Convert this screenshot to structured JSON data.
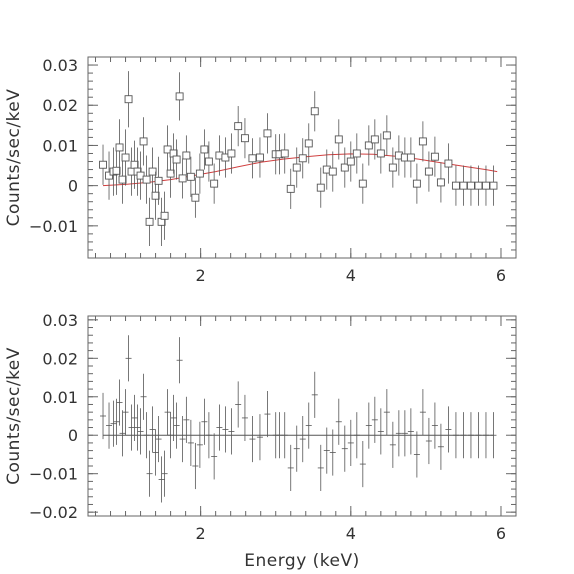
{
  "chart_data": [
    {
      "type": "scatter",
      "panel": "spectrum",
      "ylabel": "Counts/sec/keV",
      "xlabel": "",
      "xlim": [
        0.5,
        6.2
      ],
      "ylim": [
        -0.018,
        0.032
      ],
      "xticks": [
        2,
        4,
        6
      ],
      "xtick_labels": [
        "2",
        "4",
        "6"
      ],
      "yticks": [
        -0.01,
        0,
        0.01,
        0.02,
        0.03
      ],
      "ytick_labels": [
        "−0.01",
        "0",
        "0.01",
        "0.02",
        "0.03"
      ],
      "grid": false,
      "colors": {
        "data": "#555555",
        "model": "#d04040"
      },
      "series": [
        {
          "role": "data",
          "marker": "open-square",
          "x": [
            0.7,
            0.78,
            0.84,
            0.88,
            0.92,
            0.96,
            1.0,
            1.04,
            1.08,
            1.12,
            1.16,
            1.2,
            1.24,
            1.28,
            1.32,
            1.36,
            1.4,
            1.44,
            1.48,
            1.52,
            1.56,
            1.6,
            1.64,
            1.68,
            1.72,
            1.76,
            1.81,
            1.87,
            1.93,
            1.99,
            2.05,
            2.11,
            2.18,
            2.25,
            2.33,
            2.41,
            2.5,
            2.59,
            2.69,
            2.79,
            2.89,
            3.0,
            3.05,
            3.12,
            3.2,
            3.28,
            3.36,
            3.44,
            3.52,
            3.6,
            3.68,
            3.76,
            3.84,
            3.92,
            4.0,
            4.08,
            4.16,
            4.24,
            4.32,
            4.4,
            4.48,
            4.56,
            4.64,
            4.72,
            4.8,
            4.88,
            4.96,
            5.04,
            5.12,
            5.2,
            5.3,
            5.4,
            5.5,
            5.6,
            5.7,
            5.8,
            5.9
          ],
          "y": [
            0.0052,
            0.0025,
            0.0035,
            0.0037,
            0.0095,
            0.0015,
            0.007,
            0.0215,
            0.0035,
            0.0052,
            0.0035,
            0.0025,
            0.011,
            0.0015,
            -0.009,
            0.0035,
            -0.0025,
            0.0012,
            -0.009,
            -0.0075,
            0.009,
            0.003,
            0.008,
            0.0065,
            0.0222,
            0.0018,
            0.0075,
            0.0022,
            -0.003,
            0.003,
            0.009,
            0.006,
            0.0005,
            0.0075,
            0.007,
            0.008,
            0.0148,
            0.0118,
            0.0068,
            0.007,
            0.013,
            0.0078,
            0.0078,
            0.008,
            -0.0008,
            0.0045,
            0.0068,
            0.0105,
            0.0185,
            -0.0005,
            0.004,
            0.0035,
            0.0115,
            0.0045,
            0.006,
            0.008,
            0.0005,
            0.01,
            0.0115,
            0.008,
            0.0125,
            0.0045,
            0.0075,
            0.007,
            0.007,
            0.0005,
            0.011,
            0.0035,
            0.0072,
            0.0008,
            0.0055,
            0.0,
            0.0,
            0.0,
            0.0,
            0.0,
            0.0
          ],
          "yerr": [
            0.005,
            0.006,
            0.006,
            0.006,
            0.007,
            0.006,
            0.007,
            0.007,
            0.006,
            0.006,
            0.006,
            0.006,
            0.006,
            0.006,
            0.006,
            0.006,
            0.006,
            0.006,
            0.006,
            0.006,
            0.006,
            0.006,
            0.005,
            0.005,
            0.006,
            0.005,
            0.005,
            0.005,
            0.005,
            0.005,
            0.005,
            0.005,
            0.005,
            0.005,
            0.005,
            0.005,
            0.005,
            0.005,
            0.005,
            0.005,
            0.005,
            0.005,
            0.005,
            0.005,
            0.005,
            0.005,
            0.005,
            0.005,
            0.005,
            0.005,
            0.005,
            0.005,
            0.005,
            0.005,
            0.005,
            0.005,
            0.005,
            0.005,
            0.005,
            0.005,
            0.005,
            0.005,
            0.005,
            0.005,
            0.005,
            0.005,
            0.005,
            0.005,
            0.005,
            0.005,
            0.005,
            0.005,
            0.005,
            0.005,
            0.005,
            0.005,
            0.005
          ],
          "xerr": 0.04
        },
        {
          "role": "model",
          "marker": "line",
          "x": [
            0.7,
            1.0,
            1.3,
            1.6,
            1.9,
            2.2,
            2.5,
            2.8,
            3.1,
            3.4,
            3.7,
            4.0,
            4.3,
            4.6,
            4.9,
            5.2,
            5.5,
            5.8,
            5.95
          ],
          "y": [
            0.0,
            0.0003,
            0.0008,
            0.0015,
            0.0025,
            0.0035,
            0.0047,
            0.0058,
            0.0066,
            0.0072,
            0.0077,
            0.0079,
            0.0078,
            0.0073,
            0.0066,
            0.0057,
            0.0048,
            0.004,
            0.0035
          ]
        }
      ]
    },
    {
      "type": "scatter",
      "panel": "residuals",
      "ylabel": "Counts/sec/keV",
      "xlabel": "Energy (keV)",
      "xlim": [
        0.5,
        6.2
      ],
      "ylim": [
        -0.021,
        0.031
      ],
      "xticks": [
        2,
        4,
        6
      ],
      "xtick_labels": [
        "2",
        "4",
        "6"
      ],
      "yticks": [
        -0.02,
        -0.01,
        0,
        0.01,
        0.02,
        0.03
      ],
      "ytick_labels": [
        "−0.02",
        "−0.01",
        "0",
        "0.01",
        "0.02",
        "0.03"
      ],
      "grid": false,
      "zero_line": true,
      "colors": {
        "data": "#555555"
      },
      "series": [
        {
          "role": "residual",
          "marker": "cross",
          "x": [
            0.7,
            0.78,
            0.84,
            0.88,
            0.92,
            0.96,
            1.0,
            1.04,
            1.08,
            1.12,
            1.16,
            1.2,
            1.24,
            1.28,
            1.32,
            1.36,
            1.4,
            1.44,
            1.48,
            1.52,
            1.56,
            1.6,
            1.64,
            1.68,
            1.72,
            1.76,
            1.81,
            1.87,
            1.93,
            1.99,
            2.05,
            2.11,
            2.18,
            2.25,
            2.33,
            2.41,
            2.5,
            2.59,
            2.69,
            2.79,
            2.89,
            3.0,
            3.05,
            3.12,
            3.2,
            3.28,
            3.36,
            3.44,
            3.52,
            3.6,
            3.68,
            3.76,
            3.84,
            3.92,
            4.0,
            4.08,
            4.16,
            4.24,
            4.32,
            4.4,
            4.48,
            4.56,
            4.64,
            4.72,
            4.8,
            4.88,
            4.96,
            5.04,
            5.12,
            5.2,
            5.3,
            5.4,
            5.5,
            5.6,
            5.7,
            5.8,
            5.9
          ],
          "y": [
            0.005,
            0.0025,
            0.003,
            0.0035,
            0.0085,
            0.0005,
            0.006,
            0.02,
            0.002,
            0.0045,
            0.002,
            0.001,
            0.01,
            0.0,
            -0.01,
            0.0015,
            -0.0045,
            -0.001,
            -0.0115,
            -0.01,
            0.006,
            0.0,
            0.0045,
            0.0025,
            0.0195,
            -0.001,
            0.004,
            -0.002,
            -0.008,
            -0.0025,
            0.0035,
            0.0,
            -0.0055,
            0.002,
            0.0015,
            0.001,
            0.008,
            0.0045,
            -0.001,
            -0.0005,
            0.0055,
            0.0,
            0.0,
            0.0,
            -0.0085,
            -0.0035,
            -0.001,
            0.0025,
            0.0105,
            -0.0085,
            -0.004,
            -0.0045,
            0.0035,
            -0.0035,
            -0.002,
            0.0,
            -0.0075,
            0.0025,
            0.004,
            0.001,
            0.006,
            -0.0025,
            0.0005,
            0.0005,
            0.001,
            -0.005,
            0.006,
            -0.0015,
            0.0025,
            -0.003,
            0.0015,
            0.0,
            0.0,
            0.0,
            0.0,
            0.0,
            0.0
          ],
          "yerr": 0.006,
          "xerr": 0.04
        }
      ]
    }
  ]
}
